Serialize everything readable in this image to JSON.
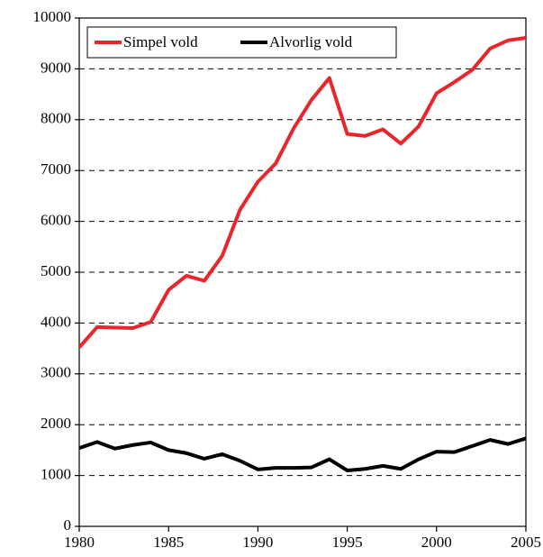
{
  "chart_data": {
    "type": "line",
    "x": [
      1980,
      1981,
      1982,
      1983,
      1984,
      1985,
      1986,
      1987,
      1988,
      1989,
      1990,
      1991,
      1992,
      1993,
      1994,
      1995,
      1996,
      1997,
      1998,
      1999,
      2000,
      2001,
      2002,
      2003,
      2004,
      2005
    ],
    "series": [
      {
        "name": "Simpel vold",
        "color": "#e8262b",
        "values": [
          3520,
          3920,
          3910,
          3900,
          4020,
          4650,
          4930,
          4830,
          5320,
          6230,
          6780,
          7140,
          7830,
          8390,
          8820,
          7720,
          7680,
          7810,
          7530,
          7870,
          8520,
          8740,
          8980,
          9400,
          9560,
          9610
        ]
      },
      {
        "name": "Alvorlig vold",
        "color": "#000000",
        "values": [
          1540,
          1660,
          1530,
          1600,
          1650,
          1500,
          1440,
          1330,
          1420,
          1290,
          1120,
          1150,
          1150,
          1160,
          1320,
          1100,
          1130,
          1190,
          1130,
          1320,
          1470,
          1460,
          1580,
          1700,
          1620,
          1730
        ]
      }
    ],
    "xlim": [
      1980,
      2005
    ],
    "xticks": [
      1980,
      1985,
      1990,
      1995,
      2000,
      2005
    ],
    "ylim": [
      0,
      10000
    ],
    "yticks": [
      0,
      1000,
      2000,
      3000,
      4000,
      5000,
      6000,
      7000,
      8000,
      9000,
      10000
    ],
    "grid": true,
    "legend": "top-left"
  }
}
